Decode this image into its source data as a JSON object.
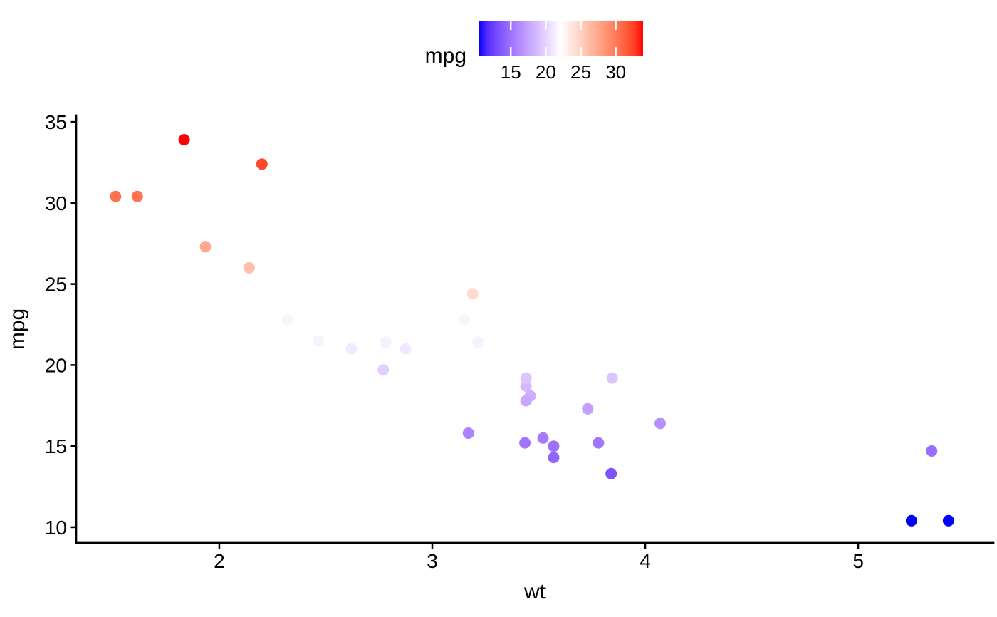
{
  "figure": {
    "background": "#FFFFFF",
    "text_color": "#000000",
    "axis_color": "#000000"
  },
  "chart_data": {
    "type": "scatter",
    "title": "",
    "xlabel": "wt",
    "ylabel": "mpg",
    "x_ticks": [
      2,
      3,
      4,
      5
    ],
    "y_ticks": [
      10,
      15,
      20,
      25,
      30,
      35
    ],
    "xlim": [
      1.328,
      5.635
    ],
    "ylim": [
      9.03,
      35.4
    ],
    "grid": "off",
    "point_color_variable": "mpg",
    "legend": {
      "title": "mpg",
      "type": "colorbar",
      "position": "top",
      "ticks": [
        15,
        20,
        25,
        30
      ],
      "domain": [
        10.4,
        33.9
      ],
      "midpoint": 22.15,
      "low_color": "#0000FF",
      "mid_color": "#FFFFFF",
      "high_color": "#FF0000"
    },
    "points": [
      {
        "wt": 2.62,
        "mpg": 21.0
      },
      {
        "wt": 2.875,
        "mpg": 21.0
      },
      {
        "wt": 2.32,
        "mpg": 22.8
      },
      {
        "wt": 3.215,
        "mpg": 21.4
      },
      {
        "wt": 3.44,
        "mpg": 18.7
      },
      {
        "wt": 3.46,
        "mpg": 18.1
      },
      {
        "wt": 3.57,
        "mpg": 14.3
      },
      {
        "wt": 3.19,
        "mpg": 24.4
      },
      {
        "wt": 3.15,
        "mpg": 22.8
      },
      {
        "wt": 3.44,
        "mpg": 19.2
      },
      {
        "wt": 3.44,
        "mpg": 17.8
      },
      {
        "wt": 4.07,
        "mpg": 16.4
      },
      {
        "wt": 3.73,
        "mpg": 17.3
      },
      {
        "wt": 3.78,
        "mpg": 15.2
      },
      {
        "wt": 5.25,
        "mpg": 10.4
      },
      {
        "wt": 5.424,
        "mpg": 10.4
      },
      {
        "wt": 5.345,
        "mpg": 14.7
      },
      {
        "wt": 2.2,
        "mpg": 32.4
      },
      {
        "wt": 1.615,
        "mpg": 30.4
      },
      {
        "wt": 1.835,
        "mpg": 33.9
      },
      {
        "wt": 2.465,
        "mpg": 21.5
      },
      {
        "wt": 3.52,
        "mpg": 15.5
      },
      {
        "wt": 3.435,
        "mpg": 15.2
      },
      {
        "wt": 3.84,
        "mpg": 13.3
      },
      {
        "wt": 3.845,
        "mpg": 19.2
      },
      {
        "wt": 1.935,
        "mpg": 27.3
      },
      {
        "wt": 2.14,
        "mpg": 26.0
      },
      {
        "wt": 1.513,
        "mpg": 30.4
      },
      {
        "wt": 3.17,
        "mpg": 15.8
      },
      {
        "wt": 2.77,
        "mpg": 19.7
      },
      {
        "wt": 3.57,
        "mpg": 15.0
      },
      {
        "wt": 2.78,
        "mpg": 21.4
      }
    ]
  }
}
